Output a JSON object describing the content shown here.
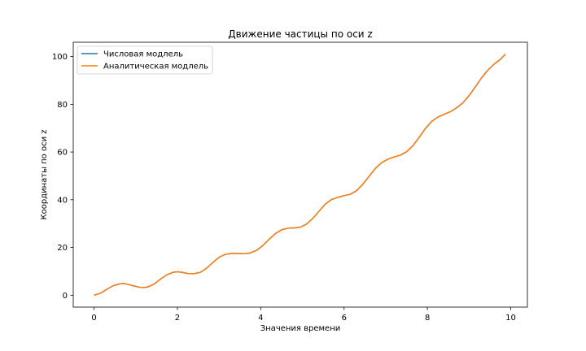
{
  "chart_data": {
    "type": "line",
    "title": "Движение частицы по оси z",
    "xlabel": "Значения времени",
    "ylabel": "Координаты по оси z",
    "xlim": [
      -0.5,
      10.4
    ],
    "ylim": [
      -5,
      106
    ],
    "xticks": [
      0,
      2,
      4,
      6,
      8,
      10
    ],
    "yticks": [
      0,
      20,
      40,
      60,
      80,
      100
    ],
    "legend_position": "upper-left",
    "grid": false,
    "series": [
      {
        "name": "Числовая модлель",
        "color": "#1f77b4",
        "x": [
          0.0,
          0.15,
          0.3,
          0.45,
          0.6,
          0.7,
          0.8,
          0.95,
          1.1,
          1.2,
          1.3,
          1.45,
          1.6,
          1.75,
          1.9,
          2.0,
          2.1,
          2.25,
          2.4,
          2.55,
          2.7,
          2.85,
          3.0,
          3.15,
          3.3,
          3.45,
          3.6,
          3.75,
          3.9,
          4.05,
          4.2,
          4.35,
          4.5,
          4.65,
          4.8,
          4.95,
          5.1,
          5.25,
          5.4,
          5.55,
          5.7,
          5.85,
          6.0,
          6.15,
          6.3,
          6.45,
          6.6,
          6.75,
          6.9,
          7.05,
          7.2,
          7.35,
          7.5,
          7.65,
          7.8,
          7.95,
          8.1,
          8.25,
          8.4,
          8.55,
          8.7,
          8.85,
          9.0,
          9.15,
          9.3,
          9.45,
          9.6,
          9.75,
          9.87
        ],
        "y": [
          0.0,
          0.8,
          2.4,
          3.9,
          4.7,
          4.9,
          4.6,
          3.9,
          3.3,
          3.2,
          3.5,
          4.8,
          6.8,
          8.6,
          9.6,
          9.8,
          9.6,
          9.1,
          9.0,
          9.6,
          11.3,
          13.7,
          15.9,
          17.1,
          17.5,
          17.5,
          17.4,
          17.7,
          18.8,
          20.8,
          23.4,
          25.8,
          27.4,
          28.1,
          28.2,
          28.5,
          29.8,
          32.2,
          35.2,
          38.2,
          40.1,
          41.0,
          41.7,
          42.3,
          43.8,
          46.5,
          49.8,
          53.1,
          55.5,
          57.0,
          57.9,
          58.7,
          60.1,
          62.6,
          66.1,
          69.8,
          72.8,
          74.6,
          75.8,
          76.9,
          78.5,
          80.6,
          83.6,
          87.3,
          91.1,
          94.3,
          96.8,
          98.8,
          101.0
        ]
      },
      {
        "name": "Аналитическая модлель",
        "color": "#ff7f0e",
        "x": [
          0.0,
          0.15,
          0.3,
          0.45,
          0.6,
          0.7,
          0.8,
          0.95,
          1.1,
          1.2,
          1.3,
          1.45,
          1.6,
          1.75,
          1.9,
          2.0,
          2.1,
          2.25,
          2.4,
          2.55,
          2.7,
          2.85,
          3.0,
          3.15,
          3.3,
          3.45,
          3.6,
          3.75,
          3.9,
          4.05,
          4.2,
          4.35,
          4.5,
          4.65,
          4.8,
          4.95,
          5.1,
          5.25,
          5.4,
          5.55,
          5.7,
          5.85,
          6.0,
          6.15,
          6.3,
          6.45,
          6.6,
          6.75,
          6.9,
          7.05,
          7.2,
          7.35,
          7.5,
          7.65,
          7.8,
          7.95,
          8.1,
          8.25,
          8.4,
          8.55,
          8.7,
          8.85,
          9.0,
          9.15,
          9.3,
          9.45,
          9.6,
          9.75,
          9.87
        ],
        "y": [
          0.0,
          0.8,
          2.4,
          3.9,
          4.7,
          4.9,
          4.6,
          3.9,
          3.3,
          3.2,
          3.5,
          4.8,
          6.8,
          8.6,
          9.6,
          9.8,
          9.6,
          9.1,
          9.0,
          9.6,
          11.3,
          13.7,
          15.9,
          17.1,
          17.5,
          17.5,
          17.4,
          17.7,
          18.8,
          20.8,
          23.4,
          25.8,
          27.4,
          28.1,
          28.2,
          28.5,
          29.8,
          32.2,
          35.2,
          38.2,
          40.1,
          41.0,
          41.7,
          42.3,
          43.8,
          46.5,
          49.8,
          53.1,
          55.5,
          57.0,
          57.9,
          58.7,
          60.1,
          62.6,
          66.1,
          69.8,
          72.8,
          74.6,
          75.8,
          76.9,
          78.5,
          80.6,
          83.6,
          87.3,
          91.1,
          94.3,
          96.8,
          98.8,
          101.0
        ]
      }
    ]
  }
}
